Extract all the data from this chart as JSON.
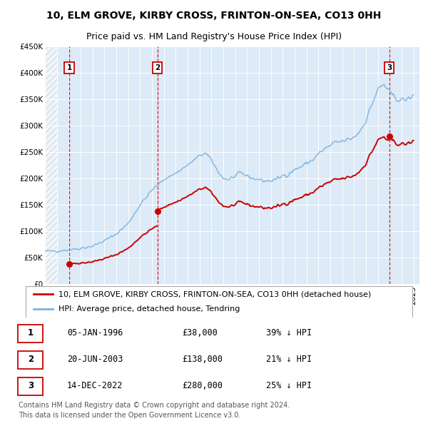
{
  "title": "10, ELM GROVE, KIRBY CROSS, FRINTON-ON-SEA, CO13 0HH",
  "subtitle": "Price paid vs. HM Land Registry's House Price Index (HPI)",
  "ylim": [
    0,
    450000
  ],
  "yticks": [
    0,
    50000,
    100000,
    150000,
    200000,
    250000,
    300000,
    350000,
    400000,
    450000
  ],
  "ytick_labels": [
    "£0",
    "£50K",
    "£100K",
    "£150K",
    "£200K",
    "£250K",
    "£300K",
    "£350K",
    "£400K",
    "£450K"
  ],
  "xlim_start": 1994.0,
  "xlim_end": 2025.5,
  "sale_dates": [
    1996.04,
    2003.47,
    2022.95
  ],
  "sale_prices": [
    38000,
    138000,
    280000
  ],
  "sale_labels": [
    "1",
    "2",
    "3"
  ],
  "hpi_color": "#7ab3e0",
  "sale_color": "#cc0000",
  "background_color": "#ddeaf7",
  "legend_label_sale": "10, ELM GROVE, KIRBY CROSS, FRINTON-ON-SEA, CO13 0HH (detached house)",
  "legend_label_hpi": "HPI: Average price, detached house, Tendring",
  "table_rows": [
    [
      "1",
      "05-JAN-1996",
      "£38,000",
      "39% ↓ HPI"
    ],
    [
      "2",
      "20-JUN-2003",
      "£138,000",
      "21% ↓ HPI"
    ],
    [
      "3",
      "14-DEC-2022",
      "£280,000",
      "25% ↓ HPI"
    ]
  ],
  "footer": "Contains HM Land Registry data © Crown copyright and database right 2024.\nThis data is licensed under the Open Government Licence v3.0.",
  "title_fontsize": 10,
  "subtitle_fontsize": 9,
  "tick_fontsize": 7.5,
  "legend_fontsize": 8,
  "table_fontsize": 8.5,
  "footer_fontsize": 7,
  "hpi_key_points": [
    [
      1994.0,
      62000
    ],
    [
      1995.0,
      63000
    ],
    [
      1996.0,
      65000
    ],
    [
      1997.0,
      68000
    ],
    [
      1998.0,
      72000
    ],
    [
      1999.0,
      82000
    ],
    [
      2000.0,
      95000
    ],
    [
      2001.0,
      115000
    ],
    [
      2002.0,
      150000
    ],
    [
      2003.0,
      178000
    ],
    [
      2004.0,
      198000
    ],
    [
      2005.0,
      210000
    ],
    [
      2006.0,
      225000
    ],
    [
      2007.0,
      243000
    ],
    [
      2007.5,
      248000
    ],
    [
      2008.0,
      235000
    ],
    [
      2008.5,
      215000
    ],
    [
      2009.0,
      200000
    ],
    [
      2009.5,
      198000
    ],
    [
      2010.0,
      204000
    ],
    [
      2010.5,
      210000
    ],
    [
      2011.0,
      205000
    ],
    [
      2011.5,
      200000
    ],
    [
      2012.0,
      198000
    ],
    [
      2012.5,
      195000
    ],
    [
      2013.0,
      196000
    ],
    [
      2013.5,
      198000
    ],
    [
      2014.0,
      205000
    ],
    [
      2014.5,
      210000
    ],
    [
      2015.0,
      216000
    ],
    [
      2015.5,
      222000
    ],
    [
      2016.0,
      228000
    ],
    [
      2016.5,
      235000
    ],
    [
      2017.0,
      246000
    ],
    [
      2017.5,
      255000
    ],
    [
      2018.0,
      262000
    ],
    [
      2018.5,
      268000
    ],
    [
      2019.0,
      270000
    ],
    [
      2019.5,
      273000
    ],
    [
      2020.0,
      278000
    ],
    [
      2020.5,
      290000
    ],
    [
      2021.0,
      310000
    ],
    [
      2021.5,
      340000
    ],
    [
      2022.0,
      368000
    ],
    [
      2022.5,
      378000
    ],
    [
      2023.0,
      362000
    ],
    [
      2023.5,
      352000
    ],
    [
      2024.0,
      348000
    ],
    [
      2024.5,
      350000
    ],
    [
      2025.0,
      355000
    ]
  ]
}
